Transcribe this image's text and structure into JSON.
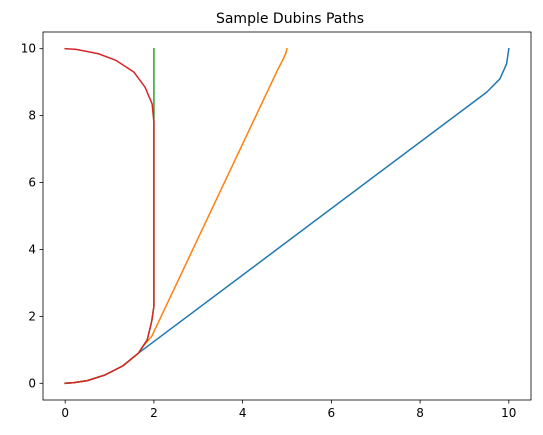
{
  "chart_data": {
    "type": "line",
    "title": "Sample Dubins Paths",
    "xlabel": "",
    "ylabel": "",
    "xlim": [
      -0.5,
      10.5
    ],
    "ylim": [
      -0.5,
      10.5
    ],
    "grid": false,
    "x_ticks": [
      0,
      2,
      4,
      6,
      8,
      10
    ],
    "y_ticks": [
      0,
      2,
      4,
      6,
      8,
      10
    ],
    "x_tick_labels": [
      "0",
      "2",
      "4",
      "6",
      "8",
      "10"
    ],
    "y_tick_labels": [
      "0",
      "2",
      "4",
      "6",
      "8",
      "10"
    ],
    "series": [
      {
        "color": "#1f77b4",
        "x": [
          0,
          0.2,
          0.5,
          0.9,
          1.3,
          1.65,
          1.75,
          9.5,
          9.8,
          9.95,
          10
        ],
        "y": [
          0,
          0.02,
          0.08,
          0.25,
          0.52,
          0.9,
          1.0,
          8.7,
          9.1,
          9.55,
          10
        ]
      },
      {
        "color": "#ff7f0e",
        "x": [
          0,
          0.2,
          0.5,
          0.9,
          1.3,
          1.65,
          1.75,
          1.95,
          4.8,
          4.9,
          4.97,
          5
        ],
        "y": [
          0,
          0.02,
          0.08,
          0.25,
          0.52,
          0.9,
          1.1,
          1.4,
          9.4,
          9.65,
          9.85,
          10
        ]
      },
      {
        "color": "#2ca02c",
        "x": [
          0,
          0.2,
          0.5,
          0.9,
          1.3,
          1.65,
          1.85,
          1.95,
          2,
          2
        ],
        "y": [
          0,
          0.02,
          0.08,
          0.25,
          0.52,
          0.9,
          1.3,
          1.85,
          2.3,
          10
        ]
      },
      {
        "color": "#d62728",
        "x": [
          0,
          0.2,
          0.5,
          0.9,
          1.3,
          1.65,
          1.85,
          1.95,
          2,
          2,
          1.96,
          1.8,
          1.55,
          1.15,
          0.75,
          0.25,
          0
        ],
        "y": [
          0,
          0.02,
          0.08,
          0.25,
          0.52,
          0.9,
          1.3,
          1.85,
          2.3,
          7.8,
          8.35,
          8.85,
          9.3,
          9.65,
          9.85,
          9.98,
          10
        ]
      }
    ]
  }
}
